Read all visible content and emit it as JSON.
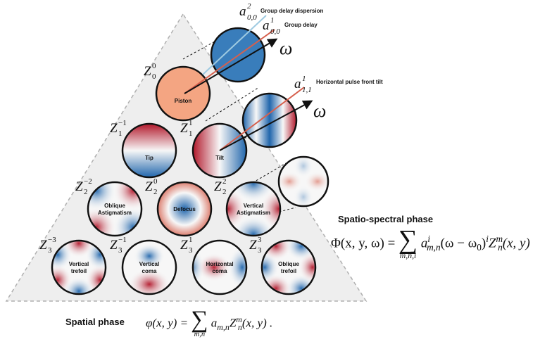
{
  "colors": {
    "red": "#b2182b",
    "white": "#f7f7f7",
    "blue": "#2166ac",
    "piston_face": "#f4a582",
    "triangle_fill": "#eeeeee",
    "triangle_edge": "#b0b0b0",
    "arrow_red": "#d6604d",
    "arrow_light": "#9ecae1"
  },
  "arrows": {
    "group_delay_dispersion": {
      "symbol": "a",
      "sub": "0,0",
      "sup": "2",
      "text": "Group delay dispersion"
    },
    "group_delay": {
      "symbol": "a",
      "sub": "0,0",
      "sup": "1",
      "text": "Group delay"
    },
    "horizontal_pulse_front_tilt": {
      "symbol": "a",
      "sub": "1,1",
      "sup": "1",
      "text": "Horizontal pulse front tilt"
    },
    "omega": "ω"
  },
  "modes": [
    {
      "id": "piston",
      "name": "Piston",
      "z_sub": "0",
      "z_sup": "0"
    },
    {
      "id": "tip",
      "name": "Tip",
      "z_sub": "1",
      "z_sup": "−1"
    },
    {
      "id": "tilt",
      "name": "Tilt",
      "z_sub": "1",
      "z_sup": "1"
    },
    {
      "id": "oblique-astigmatism",
      "name": [
        "Oblique",
        "Astigmatism"
      ],
      "z_sub": "2",
      "z_sup": "−2"
    },
    {
      "id": "defocus",
      "name": "Defocus",
      "z_sub": "2",
      "z_sup": "0"
    },
    {
      "id": "vertical-astigmatism",
      "name": [
        "Vertical",
        "Astigmatism"
      ],
      "z_sub": "2",
      "z_sup": "2"
    },
    {
      "id": "vertical-trefoil",
      "name": [
        "Vertical",
        "trefoil"
      ],
      "z_sub": "3",
      "z_sup": "−3"
    },
    {
      "id": "vertical-coma",
      "name": [
        "Vertical",
        "coma"
      ],
      "z_sub": "3",
      "z_sup": "−1"
    },
    {
      "id": "horizontal-coma",
      "name": [
        "Horizontal",
        "coma"
      ],
      "z_sub": "3",
      "z_sup": "1"
    },
    {
      "id": "oblique-trefoil",
      "name": [
        "Oblique",
        "trefoil"
      ],
      "z_sub": "3",
      "z_sup": "3"
    }
  ],
  "spatial_phase": {
    "title": "Spatial phase",
    "lhs": "φ(x, y) =",
    "sum_limits": "m,n",
    "rhs_a": "a",
    "rhs_a_sub": "m,n",
    "rhs_z": "Z",
    "rhs_z_sub": "n",
    "rhs_z_sup": "m",
    "rhs_tail": "(x, y) ."
  },
  "spectral_phase": {
    "title": "Spatio-spectral phase",
    "lhs": "Φ(x, y, ω) =",
    "sum_limits": "m,n,i",
    "rhs_a": "a",
    "rhs_a_sub": "m,n",
    "rhs_a_sup": "i",
    "rhs_mid": "(ω − ω",
    "rhs_mid_sub": "0",
    "rhs_mid_close": ")",
    "rhs_mid_sup": "i",
    "rhs_z": "Z",
    "rhs_z_sub": "n",
    "rhs_z_sup": "m",
    "rhs_tail": "(x, y)"
  }
}
